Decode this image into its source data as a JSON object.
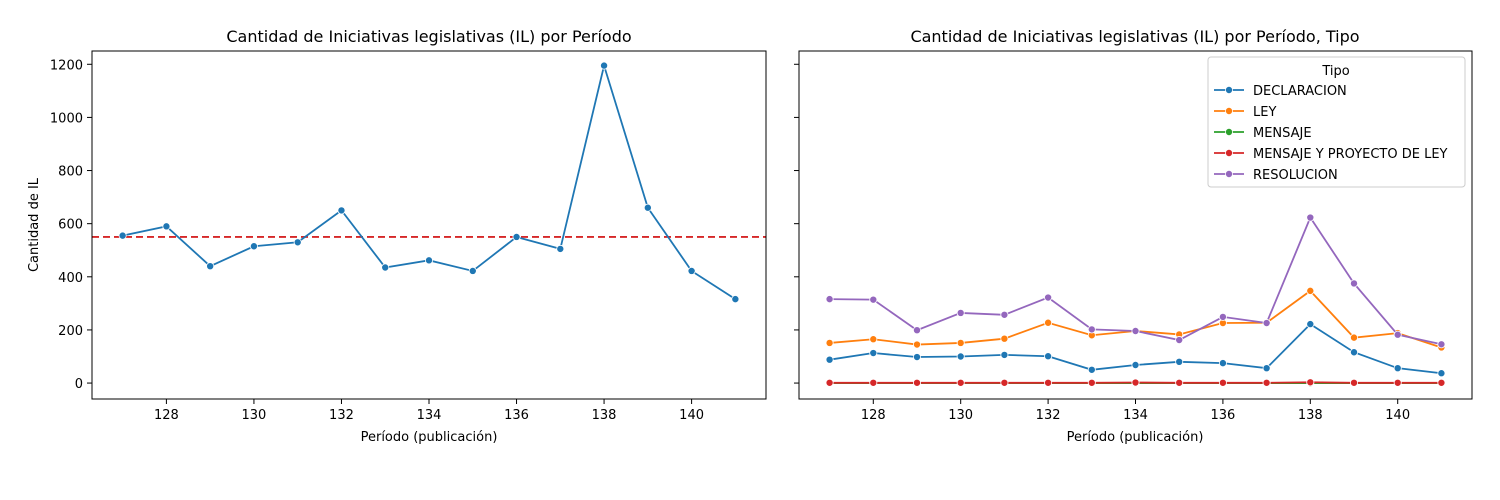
{
  "chart_data": [
    {
      "type": "line",
      "title": "Cantidad de Iniciativas legislativas (IL) por Período",
      "xlabel": "Período (publicación)",
      "ylabel": "Cantidad de IL",
      "xlim": [
        126.3,
        141.7
      ],
      "ylim": [
        -60,
        1250
      ],
      "xticks": [
        128,
        130,
        132,
        134,
        136,
        138,
        140
      ],
      "yticks": [
        0,
        200,
        400,
        600,
        800,
        1000,
        1200
      ],
      "x": [
        127,
        128,
        129,
        130,
        131,
        132,
        133,
        134,
        135,
        136,
        137,
        138,
        139,
        140,
        141
      ],
      "series": [
        {
          "color": "#1f77b4",
          "values": [
            555,
            590,
            440,
            515,
            530,
            650,
            435,
            462,
            422,
            550,
            505,
            1195,
            660,
            422,
            316
          ]
        }
      ],
      "reference_line": {
        "y": 550,
        "color": "#d62728",
        "style": "dashed"
      },
      "grid": false
    },
    {
      "type": "line",
      "title": "Cantidad de Iniciativas legislativas (IL) por Período, Tipo",
      "xlabel": "Período (publicación)",
      "ylabel": "",
      "xlim": [
        126.3,
        141.7
      ],
      "ylim": [
        -60,
        1250
      ],
      "xticks": [
        128,
        130,
        132,
        134,
        136,
        138,
        140
      ],
      "yticks": [
        0,
        200,
        400,
        600,
        800,
        1000,
        1200
      ],
      "x": [
        127,
        128,
        129,
        130,
        131,
        132,
        133,
        134,
        135,
        136,
        137,
        138,
        139,
        140,
        141
      ],
      "legend": {
        "title": "Tipo",
        "placement": "top-right"
      },
      "series": [
        {
          "name": "DECLARACION",
          "color": "#1f77b4",
          "values": [
            88,
            113,
            98,
            100,
            106,
            101,
            50,
            68,
            80,
            75,
            56,
            222,
            116,
            56,
            37
          ]
        },
        {
          "name": "LEY",
          "color": "#ff7f0e",
          "values": [
            151,
            165,
            145,
            151,
            167,
            227,
            180,
            196,
            183,
            226,
            227,
            347,
            171,
            188,
            134
          ]
        },
        {
          "name": "MENSAJE",
          "color": "#2ca02c",
          "values": [
            0,
            0,
            0,
            0,
            0,
            0,
            0,
            0,
            0,
            0,
            0,
            0,
            0,
            0,
            0
          ]
        },
        {
          "name": "MENSAJE Y PROYECTO DE LEY",
          "color": "#d62728",
          "values": [
            1,
            1,
            1,
            1,
            1,
            1,
            1,
            2,
            1,
            1,
            1,
            3,
            1,
            1,
            1
          ]
        },
        {
          "name": "RESOLUCION",
          "color": "#9467bd",
          "values": [
            316,
            314,
            199,
            264,
            257,
            322,
            202,
            196,
            162,
            249,
            226,
            623,
            375,
            182,
            146
          ]
        }
      ],
      "grid": false
    }
  ]
}
